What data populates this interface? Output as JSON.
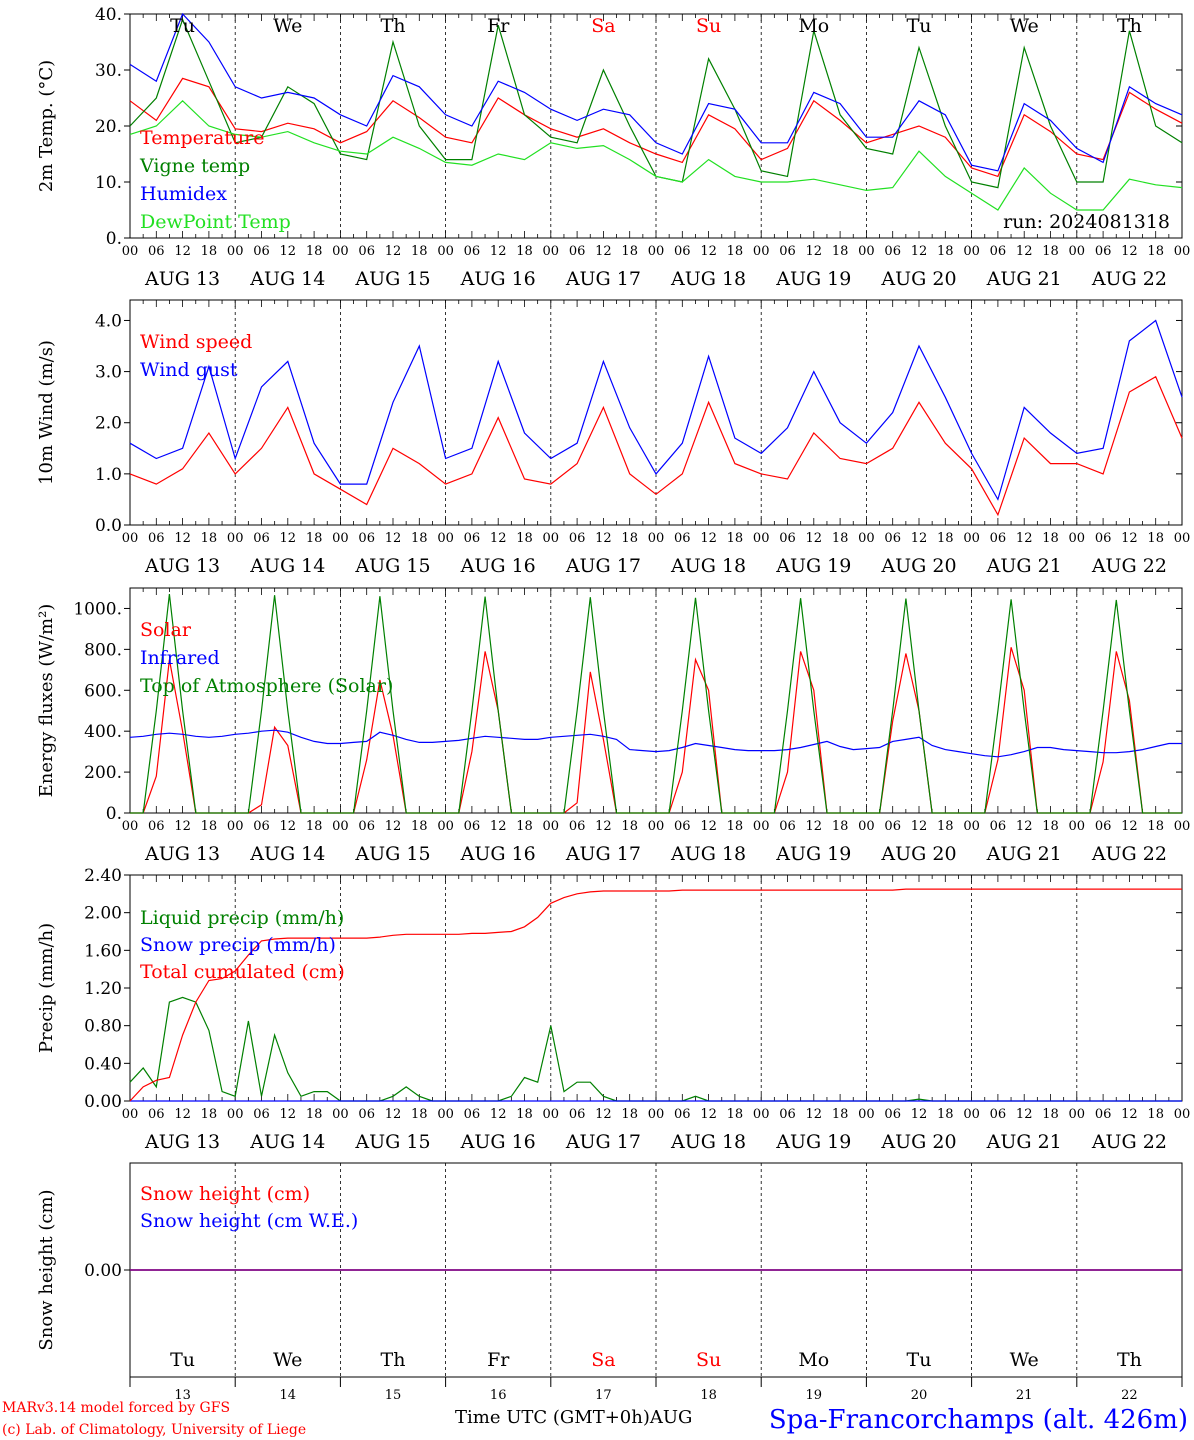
{
  "days": [
    "Tu",
    "We",
    "Th",
    "Fr",
    "Sa",
    "Su",
    "Mo",
    "Tu",
    "We",
    "Th"
  ],
  "day_colors": [
    "#000000",
    "#000000",
    "#000000",
    "#000000",
    "#ff0000",
    "#ff0000",
    "#000000",
    "#000000",
    "#000000",
    "#000000"
  ],
  "dates": [
    "AUG 13",
    "AUG 14",
    "AUG 15",
    "AUG 16",
    "AUG 17",
    "AUG 18",
    "AUG 19",
    "AUG 20",
    "AUG 21",
    "AUG 22"
  ],
  "day_numbers": [
    "13",
    "14",
    "15",
    "16",
    "17",
    "18",
    "19",
    "20",
    "21",
    "22"
  ],
  "hour_labels": [
    "00",
    "06",
    "12",
    "18"
  ],
  "final_hour_label": "00",
  "run_label": "run: 2024081318",
  "footer": {
    "model": "MARv3.14 model forced by GFS",
    "credit": "(c) Lab. of Climatology, University of Liege",
    "xaxis": "Time UTC (GMT+0h)AUG",
    "station": "Spa-Francorchamps (alt. 426m)"
  },
  "colors": {
    "red": "#ff0000",
    "dark_green": "#008000",
    "blue": "#0000ff",
    "light_green": "#22e022",
    "purple": "#800080"
  },
  "chart_data": [
    {
      "id": "temperature",
      "type": "line",
      "ylabel": "2m Temp. (°C)",
      "ylim": [
        0,
        40
      ],
      "yticks": [
        "0.",
        "10.",
        "20.",
        "30.",
        "40."
      ],
      "x": [
        0,
        0.25,
        0.5,
        0.75,
        1,
        1.25,
        1.5,
        1.75,
        2,
        2.25,
        2.5,
        2.75,
        3,
        3.25,
        3.5,
        3.75,
        4,
        4.25,
        4.5,
        4.75,
        5,
        5.25,
        5.5,
        5.75,
        6,
        6.25,
        6.5,
        6.75,
        7,
        7.25,
        7.5,
        7.75,
        8,
        8.25,
        8.5,
        8.75,
        9,
        9.25,
        9.5,
        9.75,
        10
      ],
      "series": [
        {
          "name": "Temperature",
          "color": "#ff0000",
          "values": [
            24.5,
            21,
            28.5,
            27,
            19.5,
            19,
            20.5,
            19.5,
            17,
            19,
            24.5,
            21.5,
            18,
            17,
            25,
            22,
            19.5,
            18,
            19.5,
            17,
            15,
            13.5,
            22,
            19.5,
            14,
            16,
            24.5,
            21,
            17,
            18.5,
            20,
            18,
            12.5,
            11,
            22,
            19,
            15,
            14,
            26,
            23,
            20.5
          ]
        },
        {
          "name": "Vigne temp",
          "color": "#008000",
          "values": [
            20,
            25,
            39,
            28,
            17,
            18,
            27,
            24,
            15,
            14,
            35,
            20,
            14,
            14,
            38,
            22,
            18,
            17,
            30,
            20,
            11,
            10,
            32,
            23,
            12,
            11,
            37,
            22,
            16,
            15,
            34,
            20,
            10,
            9,
            34,
            20,
            10,
            10,
            37,
            20,
            17
          ]
        },
        {
          "name": "Humidex",
          "color": "#0000ff",
          "values": [
            31,
            28,
            40,
            35,
            27,
            25,
            26,
            25,
            22,
            20,
            29,
            27,
            22,
            20,
            28,
            26,
            23,
            21,
            23,
            22,
            17,
            15,
            24,
            23,
            17,
            17,
            26,
            24,
            18,
            18,
            24.5,
            22,
            13,
            12,
            24,
            21,
            16,
            13.5,
            27,
            24,
            22
          ]
        },
        {
          "name": "DewPoint Temp",
          "color": "#22e022",
          "values": [
            18.5,
            20,
            24.5,
            20,
            18.5,
            18,
            19,
            17,
            15.5,
            15,
            18,
            16,
            13.5,
            13,
            15,
            14,
            17,
            16,
            16.5,
            14,
            11,
            10,
            14,
            11,
            10,
            10,
            10.5,
            9.5,
            8.5,
            9,
            15.5,
            11,
            8,
            5,
            12.5,
            8,
            5,
            5,
            10.5,
            9.5,
            9
          ]
        }
      ]
    },
    {
      "id": "wind",
      "type": "line",
      "ylabel": "10m Wind (m/s)",
      "ylim": [
        0,
        4.4
      ],
      "yticks": [
        "0.0",
        "1.0",
        "2.0",
        "3.0",
        "4.0"
      ],
      "x": [
        0,
        0.25,
        0.5,
        0.75,
        1,
        1.25,
        1.5,
        1.75,
        2,
        2.25,
        2.5,
        2.75,
        3,
        3.25,
        3.5,
        3.75,
        4,
        4.25,
        4.5,
        4.75,
        5,
        5.25,
        5.5,
        5.75,
        6,
        6.25,
        6.5,
        6.75,
        7,
        7.25,
        7.5,
        7.75,
        8,
        8.25,
        8.5,
        8.75,
        9,
        9.25,
        9.5,
        9.75,
        10
      ],
      "series": [
        {
          "name": "Wind speed",
          "color": "#ff0000",
          "values": [
            1.0,
            0.8,
            1.1,
            1.8,
            1.0,
            1.5,
            2.3,
            1.0,
            0.7,
            0.4,
            1.5,
            1.2,
            0.8,
            1.0,
            2.1,
            0.9,
            0.8,
            1.2,
            2.3,
            1.0,
            0.6,
            1.0,
            2.4,
            1.2,
            1.0,
            0.9,
            1.8,
            1.3,
            1.2,
            1.5,
            2.4,
            1.6,
            1.1,
            0.2,
            1.7,
            1.2,
            1.2,
            1.0,
            2.6,
            2.9,
            1.7
          ]
        },
        {
          "name": "Wind gust",
          "color": "#0000ff",
          "values": [
            1.6,
            1.3,
            1.5,
            3.1,
            1.3,
            2.7,
            3.2,
            1.6,
            0.8,
            0.8,
            2.4,
            3.5,
            1.3,
            1.5,
            3.2,
            1.8,
            1.3,
            1.6,
            3.2,
            1.9,
            1.0,
            1.6,
            3.3,
            1.7,
            1.4,
            1.9,
            3.0,
            2.0,
            1.6,
            2.2,
            3.5,
            2.5,
            1.4,
            0.5,
            2.3,
            1.8,
            1.4,
            1.5,
            3.6,
            4.0,
            2.5
          ]
        }
      ]
    },
    {
      "id": "energy",
      "type": "line",
      "ylabel": "Energy fluxes (W/m²)",
      "ylim": [
        0,
        1100
      ],
      "yticks": [
        "0.",
        "200.",
        "400.",
        "600.",
        "800.",
        "1000."
      ],
      "x": [
        0,
        0.125,
        0.25,
        0.375,
        0.5,
        0.625,
        0.75,
        0.875,
        1,
        1.125,
        1.25,
        1.375,
        1.5,
        1.625,
        1.75,
        1.875,
        2,
        2.125,
        2.25,
        2.375,
        2.5,
        2.625,
        2.75,
        2.875,
        3,
        3.125,
        3.25,
        3.375,
        3.5,
        3.625,
        3.75,
        3.875,
        4,
        4.125,
        4.25,
        4.375,
        4.5,
        4.625,
        4.75,
        4.875,
        5,
        5.125,
        5.25,
        5.375,
        5.5,
        5.625,
        5.75,
        5.875,
        6,
        6.125,
        6.25,
        6.375,
        6.5,
        6.625,
        6.75,
        6.875,
        7,
        7.125,
        7.25,
        7.375,
        7.5,
        7.625,
        7.75,
        7.875,
        8,
        8.125,
        8.25,
        8.375,
        8.5,
        8.625,
        8.75,
        8.875,
        9,
        9.125,
        9.25,
        9.375,
        9.5,
        9.625,
        9.75,
        9.875,
        10
      ],
      "series": [
        {
          "name": "Solar",
          "color": "#ff0000",
          "values": [
            0,
            0,
            180,
            750,
            400,
            0,
            0,
            0,
            0,
            0,
            40,
            420,
            330,
            0,
            0,
            0,
            0,
            0,
            260,
            650,
            380,
            0,
            0,
            0,
            0,
            0,
            300,
            790,
            500,
            0,
            0,
            0,
            0,
            0,
            50,
            690,
            360,
            0,
            0,
            0,
            0,
            0,
            200,
            750,
            600,
            0,
            0,
            0,
            0,
            0,
            200,
            790,
            600,
            0,
            0,
            0,
            0,
            0,
            450,
            780,
            500,
            0,
            0,
            0,
            0,
            0,
            260,
            810,
            600,
            0,
            0,
            0,
            0,
            0,
            250,
            790,
            550,
            0,
            0,
            0,
            0
          ]
        },
        {
          "name": "Infrared",
          "color": "#0000ff",
          "values": [
            370,
            375,
            385,
            390,
            385,
            375,
            370,
            375,
            385,
            390,
            400,
            405,
            395,
            370,
            350,
            340,
            340,
            345,
            350,
            395,
            380,
            360,
            345,
            345,
            350,
            355,
            365,
            375,
            370,
            365,
            360,
            360,
            370,
            375,
            380,
            385,
            375,
            360,
            310,
            305,
            300,
            305,
            320,
            340,
            330,
            320,
            310,
            305,
            305,
            305,
            310,
            320,
            335,
            350,
            325,
            310,
            315,
            320,
            350,
            360,
            370,
            330,
            310,
            300,
            290,
            280,
            275,
            285,
            300,
            320,
            320,
            310,
            305,
            300,
            295,
            295,
            300,
            310,
            325,
            340,
            340
          ]
        },
        {
          "name": "Top of Atmosphere (Solar)",
          "color": "#008000",
          "values": [
            0,
            0,
            500,
            1070,
            500,
            0,
            0,
            0,
            0,
            0,
            500,
            1065,
            500,
            0,
            0,
            0,
            0,
            0,
            500,
            1060,
            500,
            0,
            0,
            0,
            0,
            0,
            500,
            1058,
            500,
            0,
            0,
            0,
            0,
            0,
            500,
            1055,
            500,
            0,
            0,
            0,
            0,
            0,
            500,
            1052,
            500,
            0,
            0,
            0,
            0,
            0,
            500,
            1050,
            500,
            0,
            0,
            0,
            0,
            0,
            500,
            1048,
            500,
            0,
            0,
            0,
            0,
            0,
            500,
            1045,
            500,
            0,
            0,
            0,
            0,
            0,
            500,
            1042,
            500,
            0,
            0,
            0,
            0
          ]
        }
      ]
    },
    {
      "id": "precip",
      "type": "line",
      "ylabel": "Precip (mm/h)",
      "ylim": [
        0,
        2.4
      ],
      "yticks": [
        "0.00",
        "0.40",
        "0.80",
        "1.20",
        "1.60",
        "2.00",
        "2.40"
      ],
      "x": [
        0,
        0.125,
        0.25,
        0.375,
        0.5,
        0.625,
        0.75,
        0.875,
        1,
        1.125,
        1.25,
        1.375,
        1.5,
        1.625,
        1.75,
        1.875,
        2,
        2.125,
        2.25,
        2.375,
        2.5,
        2.625,
        2.75,
        2.875,
        3,
        3.125,
        3.25,
        3.375,
        3.5,
        3.625,
        3.75,
        3.875,
        4,
        4.125,
        4.25,
        4.375,
        4.5,
        4.625,
        4.75,
        4.875,
        5,
        5.125,
        5.25,
        5.375,
        5.5,
        5.625,
        5.75,
        5.875,
        6,
        6.125,
        6.25,
        6.375,
        6.5,
        6.625,
        6.75,
        6.875,
        7,
        7.125,
        7.25,
        7.375,
        7.5,
        7.625,
        7.75,
        7.875,
        8,
        8.125,
        8.25,
        8.375,
        8.5,
        8.625,
        8.75,
        8.875,
        9,
        9.125,
        9.25,
        9.375,
        9.5,
        9.625,
        9.75,
        9.875,
        10
      ],
      "series": [
        {
          "name": "Liquid precip (mm/h)",
          "color": "#008000",
          "values": [
            0.2,
            0.35,
            0.15,
            1.05,
            1.1,
            1.05,
            0.75,
            0.1,
            0.05,
            0.85,
            0.05,
            0.7,
            0.3,
            0.05,
            0.1,
            0.1,
            0,
            0,
            0,
            0,
            0.05,
            0.15,
            0.05,
            0,
            0,
            0,
            0,
            0,
            0,
            0.05,
            0.25,
            0.2,
            0.8,
            0.1,
            0.2,
            0.2,
            0.05,
            0,
            0,
            0,
            0,
            0,
            0,
            0.05,
            0,
            0,
            0,
            0,
            0,
            0,
            0,
            0,
            0,
            0,
            0,
            0,
            0,
            0,
            0,
            0,
            0.02,
            0,
            0,
            0,
            0,
            0,
            0,
            0,
            0,
            0,
            0,
            0,
            0,
            0,
            0,
            0,
            0,
            0,
            0,
            0,
            0
          ]
        },
        {
          "name": "Snow precip (mm/h)",
          "color": "#0000ff",
          "values": [
            0,
            0,
            0,
            0,
            0,
            0,
            0,
            0,
            0,
            0,
            0,
            0,
            0,
            0,
            0,
            0,
            0,
            0,
            0,
            0,
            0,
            0,
            0,
            0,
            0,
            0,
            0,
            0,
            0,
            0,
            0,
            0,
            0,
            0,
            0,
            0,
            0,
            0,
            0,
            0,
            0,
            0,
            0,
            0,
            0,
            0,
            0,
            0,
            0,
            0,
            0,
            0,
            0,
            0,
            0,
            0,
            0,
            0,
            0,
            0,
            0,
            0,
            0,
            0,
            0,
            0,
            0,
            0,
            0,
            0,
            0,
            0,
            0,
            0,
            0,
            0,
            0,
            0,
            0,
            0,
            0
          ]
        },
        {
          "name": "Total cumulated (cm)",
          "color": "#ff0000",
          "values": [
            0.0,
            0.15,
            0.22,
            0.25,
            0.7,
            1.05,
            1.28,
            1.3,
            1.38,
            1.55,
            1.7,
            1.72,
            1.73,
            1.73,
            1.73,
            1.73,
            1.73,
            1.73,
            1.73,
            1.74,
            1.76,
            1.77,
            1.77,
            1.77,
            1.77,
            1.77,
            1.78,
            1.78,
            1.79,
            1.8,
            1.85,
            1.95,
            2.1,
            2.16,
            2.2,
            2.22,
            2.23,
            2.23,
            2.23,
            2.23,
            2.23,
            2.23,
            2.24,
            2.24,
            2.24,
            2.24,
            2.24,
            2.24,
            2.24,
            2.24,
            2.24,
            2.24,
            2.24,
            2.24,
            2.24,
            2.24,
            2.24,
            2.24,
            2.24,
            2.25,
            2.25,
            2.25,
            2.25,
            2.25,
            2.25,
            2.25,
            2.25,
            2.25,
            2.25,
            2.25,
            2.25,
            2.25,
            2.25,
            2.25,
            2.25,
            2.25,
            2.25,
            2.25,
            2.25,
            2.25,
            2.25
          ]
        }
      ]
    },
    {
      "id": "snow",
      "type": "line",
      "ylabel": "Snow height (cm)",
      "ylim": [
        -1,
        1
      ],
      "yticks": [
        "0.00"
      ],
      "x": [
        0,
        10
      ],
      "series": [
        {
          "name": "Snow height (cm)",
          "color": "#ff0000",
          "values": [
            0,
            0
          ]
        },
        {
          "name": "Snow height (cm W.E.)",
          "color": "#0000ff",
          "values": [
            0,
            0
          ]
        }
      ]
    }
  ]
}
